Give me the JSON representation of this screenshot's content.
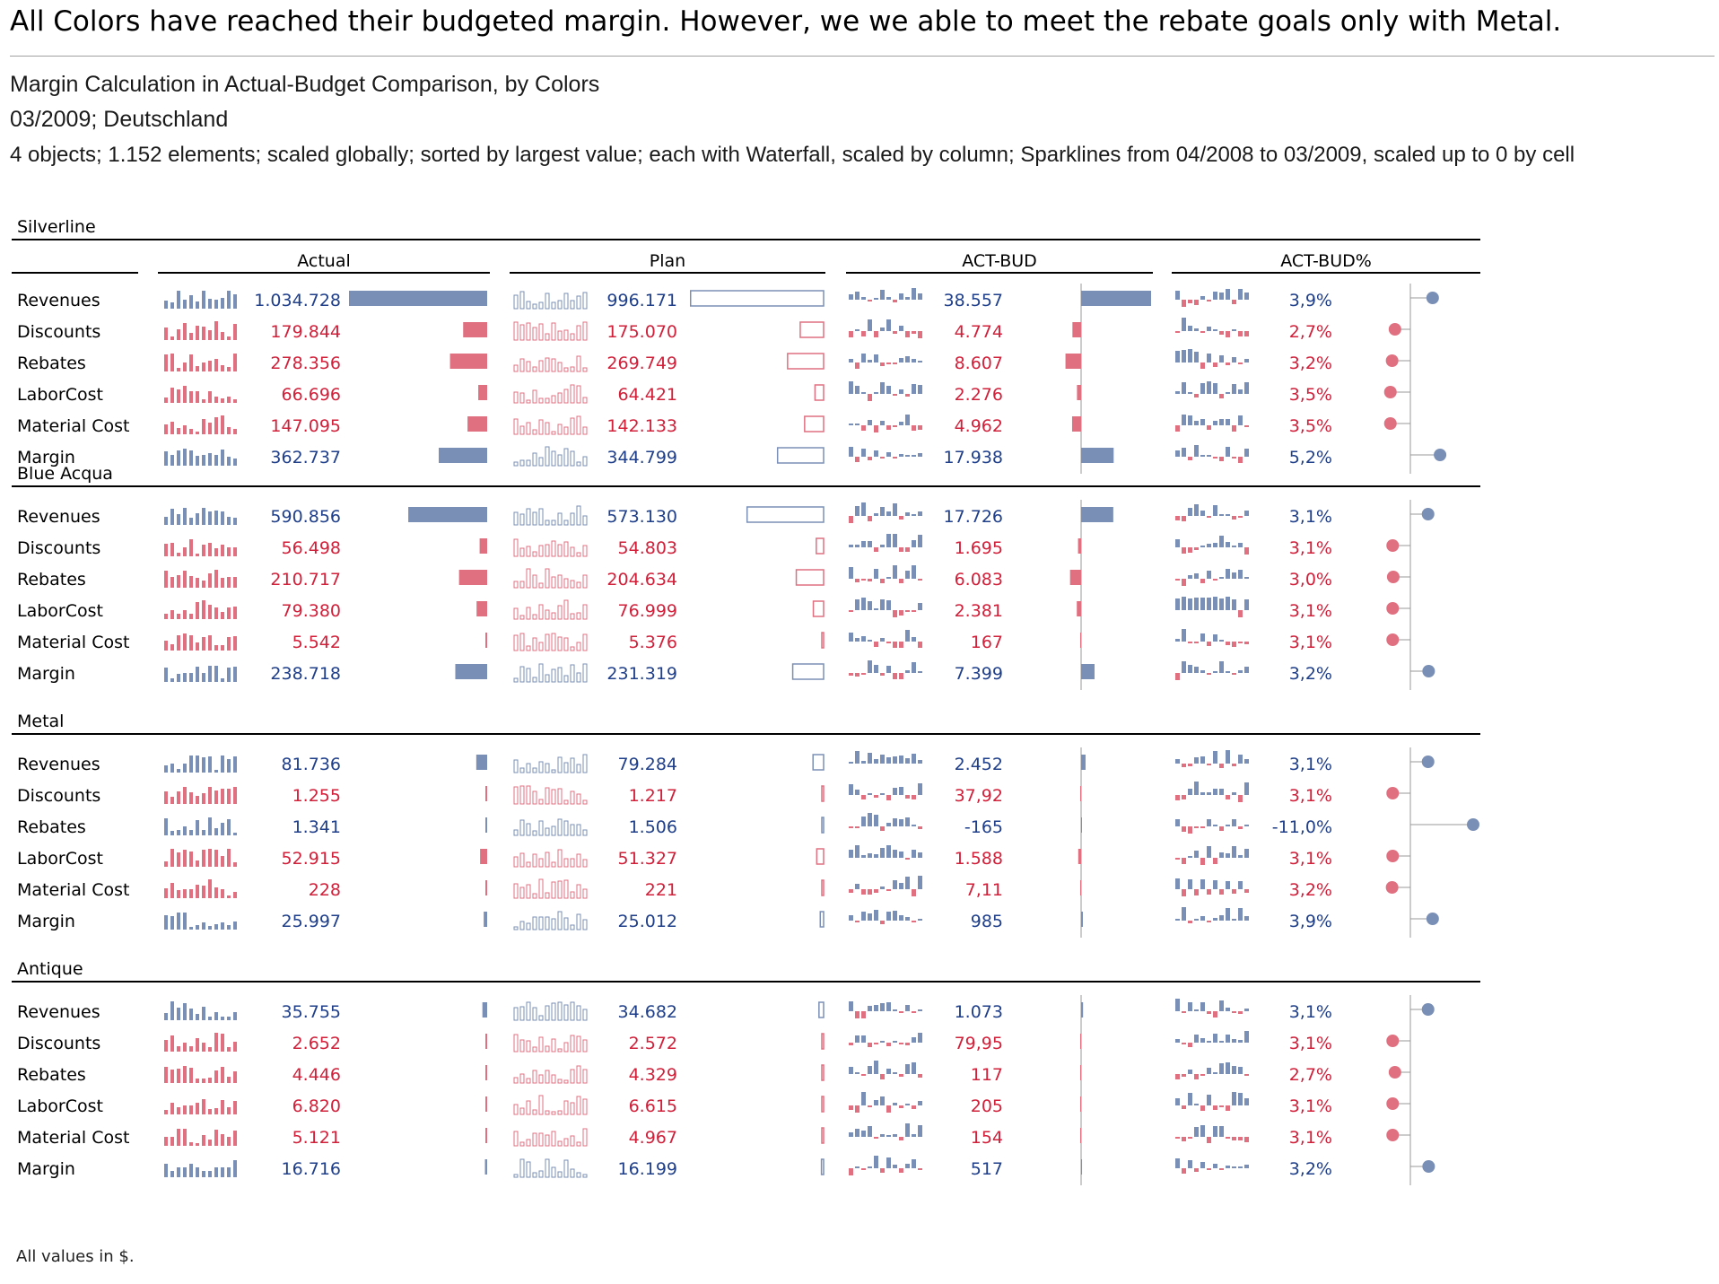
{
  "headline": "All Colors have reached their budgeted margin. However, we we able to meet the rebate goals only with Metal.",
  "title": "Margin Calculation in Actual-Budget Comparison, by Colors",
  "subtitle_period": "03/2009; Deutschland",
  "subtitle_details": "4 objects; 1.152 elements; scaled globally; sorted by largest value; each with Waterfall, scaled by column; Sparklines from 04/2008 to 03/2009, scaled up to 0 by cell",
  "footer": "All values in $.",
  "colors": {
    "positive": "#7a8fb5",
    "negative": "#e07080",
    "axis": "#000000",
    "light_axis": "#999999"
  },
  "column_headers": [
    "Actual",
    "Plan",
    "ACT-BUD",
    "ACT-BUD%"
  ],
  "chart_data": {
    "type": "table",
    "columns": [
      "Actual",
      "Plan",
      "ACT-BUD",
      "ACT-BUD%"
    ],
    "row_labels": [
      "Revenues",
      "Discounts",
      "Rebates",
      "LaborCost",
      "Material Cost",
      "Margin"
    ],
    "groups": [
      {
        "name": "Silverline",
        "rows": [
          {
            "label": "Revenues",
            "actual": "1.034.728",
            "plan": "996.171",
            "actbud": "38.557",
            "actbudpct": "3,9%",
            "a": 1034728,
            "p": 996171,
            "d": 38557,
            "pct": 3.9,
            "good": true
          },
          {
            "label": "Discounts",
            "actual": "179.844",
            "plan": "175.070",
            "actbud": "4.774",
            "actbudpct": "2,7%",
            "a": 179844,
            "p": 175070,
            "d": 4774,
            "pct": 2.7,
            "good": false
          },
          {
            "label": "Rebates",
            "actual": "278.356",
            "plan": "269.749",
            "actbud": "8.607",
            "actbudpct": "3,2%",
            "a": 278356,
            "p": 269749,
            "d": 8607,
            "pct": 3.2,
            "good": false
          },
          {
            "label": "LaborCost",
            "actual": "66.696",
            "plan": "64.421",
            "actbud": "2.276",
            "actbudpct": "3,5%",
            "a": 66696,
            "p": 64421,
            "d": 2276,
            "pct": 3.5,
            "good": false
          },
          {
            "label": "Material Cost",
            "actual": "147.095",
            "plan": "142.133",
            "actbud": "4.962",
            "actbudpct": "3,5%",
            "a": 147095,
            "p": 142133,
            "d": 4962,
            "pct": 3.5,
            "good": false
          },
          {
            "label": "Margin",
            "actual": "362.737",
            "plan": "344.799",
            "actbud": "17.938",
            "actbudpct": "5,2%",
            "a": 362737,
            "p": 344799,
            "d": 17938,
            "pct": 5.2,
            "good": true
          }
        ]
      },
      {
        "name": "Blue Acqua",
        "rows": [
          {
            "label": "Revenues",
            "actual": "590.856",
            "plan": "573.130",
            "actbud": "17.726",
            "actbudpct": "3,1%",
            "a": 590856,
            "p": 573130,
            "d": 17726,
            "pct": 3.1,
            "good": true
          },
          {
            "label": "Discounts",
            "actual": "56.498",
            "plan": "54.803",
            "actbud": "1.695",
            "actbudpct": "3,1%",
            "a": 56498,
            "p": 54803,
            "d": 1695,
            "pct": 3.1,
            "good": false
          },
          {
            "label": "Rebates",
            "actual": "210.717",
            "plan": "204.634",
            "actbud": "6.083",
            "actbudpct": "3,0%",
            "a": 210717,
            "p": 204634,
            "d": 6083,
            "pct": 3.0,
            "good": false
          },
          {
            "label": "LaborCost",
            "actual": "79.380",
            "plan": "76.999",
            "actbud": "2.381",
            "actbudpct": "3,1%",
            "a": 79380,
            "p": 76999,
            "d": 2381,
            "pct": 3.1,
            "good": false
          },
          {
            "label": "Material Cost",
            "actual": "5.542",
            "plan": "5.376",
            "actbud": "167",
            "actbudpct": "3,1%",
            "a": 5542,
            "p": 5376,
            "d": 167,
            "pct": 3.1,
            "good": false
          },
          {
            "label": "Margin",
            "actual": "238.718",
            "plan": "231.319",
            "actbud": "7.399",
            "actbudpct": "3,2%",
            "a": 238718,
            "p": 231319,
            "d": 7399,
            "pct": 3.2,
            "good": true
          }
        ]
      },
      {
        "name": "Metal",
        "rows": [
          {
            "label": "Revenues",
            "actual": "81.736",
            "plan": "79.284",
            "actbud": "2.452",
            "actbudpct": "3,1%",
            "a": 81736,
            "p": 79284,
            "d": 2452,
            "pct": 3.1,
            "good": true
          },
          {
            "label": "Discounts",
            "actual": "1.255",
            "plan": "1.217",
            "actbud": "37,92",
            "actbudpct": "3,1%",
            "a": 1255,
            "p": 1217,
            "d": 37.92,
            "pct": 3.1,
            "good": false
          },
          {
            "label": "Rebates",
            "actual": "1.341",
            "plan": "1.506",
            "actbud": "-165",
            "actbudpct": "-11,0%",
            "a": 1341,
            "p": 1506,
            "d": -165,
            "pct": -11.0,
            "good": true
          },
          {
            "label": "LaborCost",
            "actual": "52.915",
            "plan": "51.327",
            "actbud": "1.588",
            "actbudpct": "3,1%",
            "a": 52915,
            "p": 51327,
            "d": 1588,
            "pct": 3.1,
            "good": false
          },
          {
            "label": "Material Cost",
            "actual": "228",
            "plan": "221",
            "actbud": "7,11",
            "actbudpct": "3,2%",
            "a": 228,
            "p": 221,
            "d": 7.11,
            "pct": 3.2,
            "good": false
          },
          {
            "label": "Margin",
            "actual": "25.997",
            "plan": "25.012",
            "actbud": "985",
            "actbudpct": "3,9%",
            "a": 25997,
            "p": 25012,
            "d": 985,
            "pct": 3.9,
            "good": true
          }
        ]
      },
      {
        "name": "Antique",
        "rows": [
          {
            "label": "Revenues",
            "actual": "35.755",
            "plan": "34.682",
            "actbud": "1.073",
            "actbudpct": "3,1%",
            "a": 35755,
            "p": 34682,
            "d": 1073,
            "pct": 3.1,
            "good": true
          },
          {
            "label": "Discounts",
            "actual": "2.652",
            "plan": "2.572",
            "actbud": "79,95",
            "actbudpct": "3,1%",
            "a": 2652,
            "p": 2572,
            "d": 79.95,
            "pct": 3.1,
            "good": false
          },
          {
            "label": "Rebates",
            "actual": "4.446",
            "plan": "4.329",
            "actbud": "117",
            "actbudpct": "2,7%",
            "a": 4446,
            "p": 4329,
            "d": 117,
            "pct": 2.7,
            "good": false
          },
          {
            "label": "LaborCost",
            "actual": "6.820",
            "plan": "6.615",
            "actbud": "205",
            "actbudpct": "3,1%",
            "a": 6820,
            "p": 6615,
            "d": 205,
            "pct": 3.1,
            "good": false
          },
          {
            "label": "Material Cost",
            "actual": "5.121",
            "plan": "4.967",
            "actbud": "154",
            "actbudpct": "3,1%",
            "a": 5121,
            "p": 4967,
            "d": 154,
            "pct": 3.1,
            "good": false
          },
          {
            "label": "Margin",
            "actual": "16.716",
            "plan": "16.199",
            "actbud": "517",
            "actbudpct": "3,2%",
            "a": 16716,
            "p": 16199,
            "d": 517,
            "pct": 3.2,
            "good": true
          }
        ]
      }
    ]
  }
}
